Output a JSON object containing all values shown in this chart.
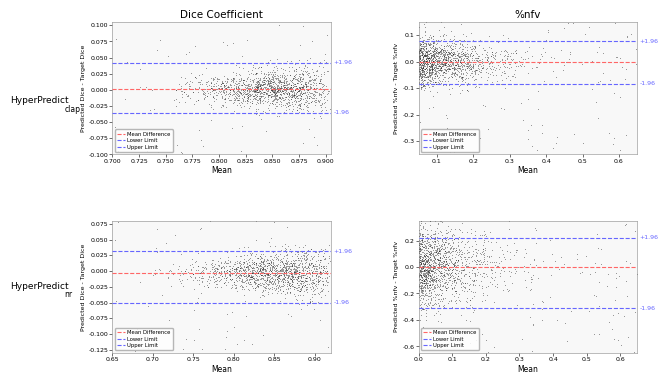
{
  "title_top_left": "Dice Coefficient",
  "title_top_right": "%nfv",
  "panels": [
    {
      "mean_diff": 0.002,
      "upper_limit": 0.042,
      "lower_limit": -0.035,
      "upper_label": "+1.96",
      "lower_label": "-1.96",
      "xlim": [
        0.7,
        0.905
      ],
      "ylim": [
        -0.1,
        0.105
      ],
      "xlabel": "Mean",
      "ylabel": "Predicted Dice - Target Dice",
      "xticks": [
        0.7,
        0.725,
        0.75,
        0.775,
        0.8,
        0.825,
        0.85,
        0.875,
        0.9
      ],
      "xticklabels": [
        "0.700",
        "0.725",
        "0.750",
        "0.775",
        "0.800",
        "0.825",
        "0.850",
        "0.875",
        "0.900"
      ],
      "yticks": [
        -0.1,
        -0.075,
        -0.05,
        -0.025,
        0.0,
        0.025,
        0.05,
        0.075,
        0.1
      ],
      "yticklabels": [
        "-0.100",
        "-0.075",
        "-0.050",
        "-0.025",
        "0.000",
        "0.025",
        "0.050",
        "0.075",
        "0.100"
      ],
      "scatter_seed": 0
    },
    {
      "mean_diff": 0.0,
      "upper_limit": 0.078,
      "lower_limit": -0.082,
      "upper_label": "+1.96",
      "lower_label": "-1.96",
      "xlim": [
        0.05,
        0.65
      ],
      "ylim": [
        -0.35,
        0.15
      ],
      "xlabel": "Mean",
      "ylabel": "Predicted %nfv - Target %nfv",
      "xticks": [
        0.1,
        0.2,
        0.3,
        0.4,
        0.5,
        0.6
      ],
      "xticklabels": [
        "0.1",
        "0.2",
        "0.3",
        "0.4",
        "0.5",
        "0.6"
      ],
      "yticks": [
        -0.3,
        -0.2,
        -0.1,
        0.0,
        0.1
      ],
      "yticklabels": [
        "-0.3",
        "-0.2",
        "-0.1",
        "0.0",
        "0.1"
      ],
      "scatter_seed": 1
    },
    {
      "mean_diff": -0.003,
      "upper_limit": 0.032,
      "lower_limit": -0.05,
      "upper_label": "+1.96",
      "lower_label": "-1.96",
      "xlim": [
        0.65,
        0.92
      ],
      "ylim": [
        -0.13,
        0.08
      ],
      "xlabel": "Mean",
      "ylabel": "Predicted Dice - Target Dice",
      "xticks": [
        0.65,
        0.7,
        0.75,
        0.8,
        0.85,
        0.9
      ],
      "xticklabels": [
        "0.65",
        "0.70",
        "0.75",
        "0.80",
        "0.85",
        "0.90"
      ],
      "yticks": [
        -0.125,
        -0.1,
        -0.075,
        -0.05,
        -0.025,
        0.0,
        0.025,
        0.05,
        0.075
      ],
      "yticklabels": [
        "-0.125",
        "-0.100",
        "-0.075",
        "-0.050",
        "-0.025",
        "0.000",
        "0.025",
        "0.050",
        "0.075"
      ],
      "scatter_seed": 2
    },
    {
      "mean_diff": 0.0,
      "upper_limit": 0.22,
      "lower_limit": -0.31,
      "upper_label": "+1.96",
      "lower_label": "-1.96",
      "xlim": [
        0.0,
        0.65
      ],
      "ylim": [
        -0.65,
        0.35
      ],
      "xlabel": "Mean",
      "ylabel": "Predicted %nfv - Target %nfv",
      "xticks": [
        0.0,
        0.1,
        0.2,
        0.3,
        0.4,
        0.5,
        0.6
      ],
      "xticklabels": [
        "0.0",
        "0.1",
        "0.2",
        "0.3",
        "0.4",
        "0.5",
        "0.6"
      ],
      "yticks": [
        -0.6,
        -0.4,
        -0.2,
        0.0,
        0.2
      ],
      "yticklabels": [
        "-0.6",
        "-0.4",
        "-0.2",
        "0.0",
        "0.2"
      ],
      "scatter_seed": 3
    }
  ],
  "mean_diff_color": "#FF6666",
  "limit_color": "#6666FF",
  "scatter_color": "#222222",
  "scatter_size": 1.5,
  "scatter_alpha": 0.45,
  "n_points": 1400,
  "legend_items": [
    "Mean Difference",
    "Lower Limit",
    "Upper Limit"
  ],
  "row_label_main": "HyperPredict",
  "row_label_subs": [
    "clap",
    "nr"
  ]
}
